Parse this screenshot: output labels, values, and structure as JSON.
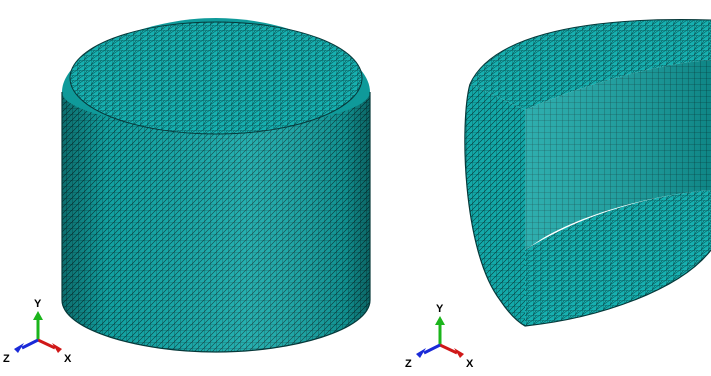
{
  "views": [
    {
      "id": "full-cylinder",
      "triad": {
        "y_label": "Y",
        "z_label": "Z",
        "x_label": "X"
      }
    },
    {
      "id": "half-cylinder-cut",
      "triad": {
        "y_label": "Y",
        "z_label": "Z",
        "x_label": "X"
      }
    }
  ],
  "colors": {
    "mesh_fill": "#13a9a9",
    "mesh_fill_dark": "#0b7f80",
    "mesh_line": "#06393a",
    "axis_y": "#1bb51b",
    "axis_x": "#d01818",
    "axis_z": "#1a2ad8",
    "background": "#ffffff"
  }
}
